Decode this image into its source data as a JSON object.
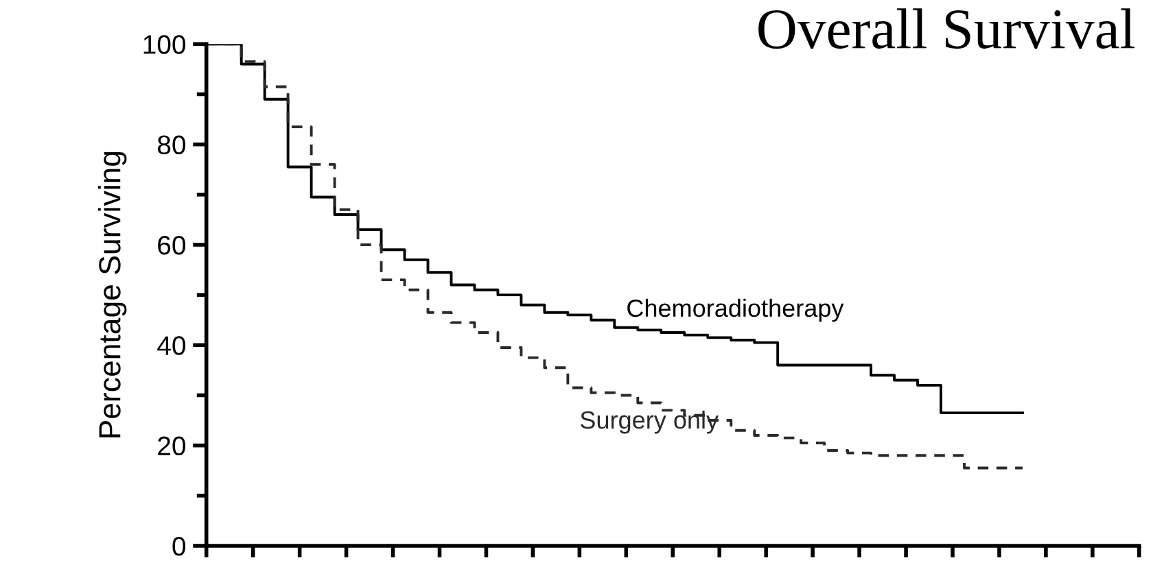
{
  "chart_data": {
    "type": "step",
    "title": "Overall Survival",
    "ylabel": "Percentage Surviving",
    "categories": [
      null,
      null,
      null,
      null,
      null,
      null,
      null,
      null,
      null,
      null,
      null,
      null,
      null,
      null,
      null,
      null,
      null,
      null,
      null,
      null,
      null,
      null,
      null,
      null,
      null,
      null,
      null,
      null,
      null,
      null,
      null,
      null,
      null,
      null,
      null,
      null
    ],
    "series": [
      {
        "name": "Chemoradiotherapy",
        "color": "#000000",
        "line_style": "solid",
        "values": [
          100,
          100,
          96,
          89,
          75.5,
          69.5,
          66,
          63,
          59,
          57,
          54.5,
          52,
          51,
          50,
          48,
          46.5,
          46,
          45,
          43.5,
          43,
          42.5,
          42,
          41.5,
          41,
          40.5,
          36,
          36,
          36,
          36,
          34,
          33,
          32,
          26.5,
          26.5,
          26.5,
          26.5
        ]
      },
      {
        "name": "Surgery only",
        "color": "#2a2a2a",
        "line_style": "dashed",
        "values": [
          100,
          100,
          96.5,
          91.5,
          83.5,
          76,
          67,
          60,
          53,
          51,
          46.5,
          44.5,
          42.5,
          39.5,
          37.5,
          35.5,
          31.5,
          30.5,
          30,
          28.5,
          27,
          26,
          25,
          23,
          22,
          21.5,
          20.5,
          19,
          18.5,
          18,
          18,
          18,
          18,
          15.5,
          15.5,
          15.5
        ]
      }
    ],
    "ylim": [
      0,
      100
    ],
    "yticks": [
      0,
      {
        "value": 10,
        "label": null
      },
      20,
      {
        "value": 30,
        "label": null
      },
      40,
      {
        "value": 50,
        "label": null
      },
      60,
      {
        "value": 70,
        "label": null
      },
      80,
      {
        "value": 90,
        "label": null
      },
      100
    ],
    "tick_labels": "y",
    "grid": false,
    "legend": false
  }
}
